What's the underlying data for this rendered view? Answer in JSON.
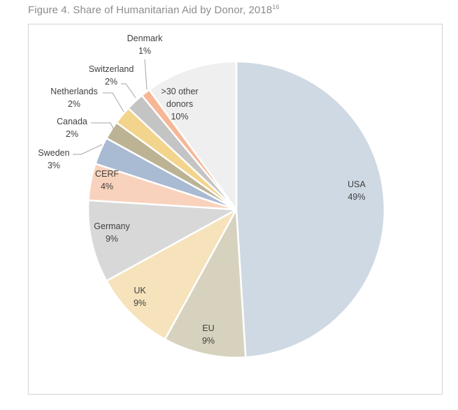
{
  "figure": {
    "title_main": "Figure 4. Share of Humanitarian Aid by Donor, 2018",
    "title_footnote": "16"
  },
  "chart_data": {
    "type": "pie",
    "title": "Figure 4. Share of Humanitarian Aid by Donor, 2018",
    "start": "12 o'clock, clockwise",
    "slices": [
      {
        "label": "USA",
        "value": 49,
        "value_label": "49%",
        "color": "#cfd9e3"
      },
      {
        "label": "EU",
        "value": 9,
        "value_label": "9%",
        "color": "#d6d2be"
      },
      {
        "label": "UK",
        "value": 9,
        "value_label": "9%",
        "color": "#f6e3bc"
      },
      {
        "label": "Germany",
        "value": 9,
        "value_label": "9%",
        "color": "#d8d8d8"
      },
      {
        "label": "CERF",
        "value": 4,
        "value_label": "4%",
        "color": "#f8d2bc"
      },
      {
        "label": "Sweden",
        "value": 3,
        "value_label": "3%",
        "color": "#a9bad3"
      },
      {
        "label": "Canada",
        "value": 2,
        "value_label": "2%",
        "color": "#bcb394"
      },
      {
        "label": "Netherlands",
        "value": 2,
        "value_label": "2%",
        "color": "#f3d48c"
      },
      {
        "label": "Switzerland",
        "value": 2,
        "value_label": "2%",
        "color": "#c4c4c4"
      },
      {
        "label": "Denmark",
        "value": 1,
        "value_label": "1%",
        "color": "#f6b797"
      },
      {
        "label": ">30 other donors",
        "value": 10,
        "value_label": "10%",
        "color": "#efefef"
      }
    ]
  }
}
